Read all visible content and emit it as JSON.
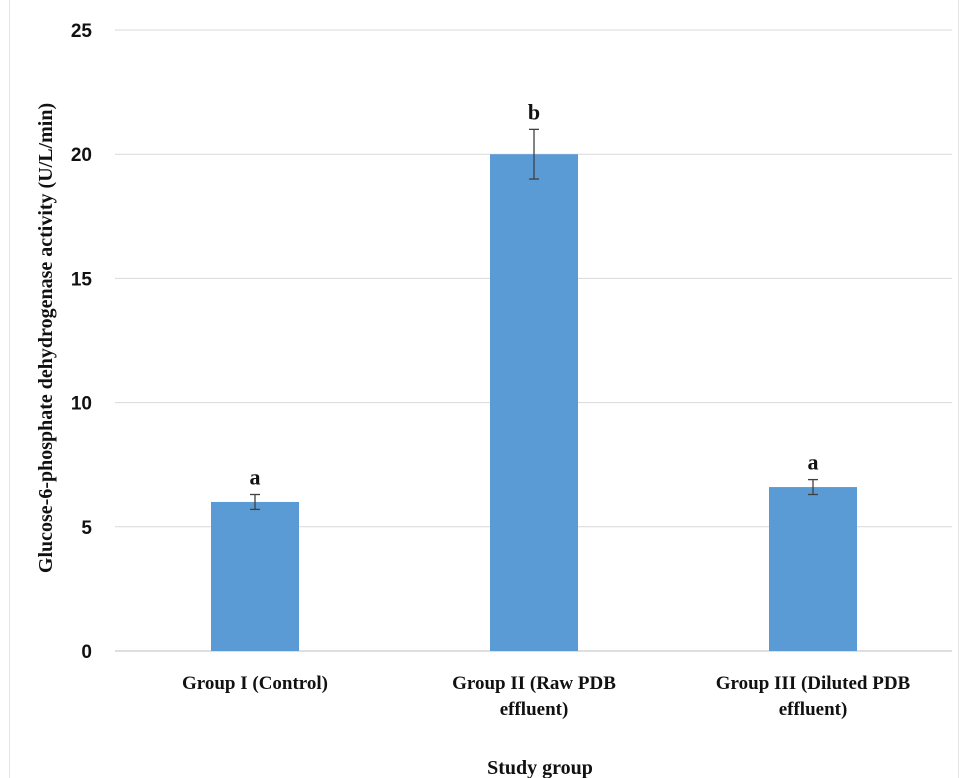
{
  "chart_data": {
    "type": "bar",
    "categories": [
      [
        "Group I (Control)"
      ],
      [
        "Group II (Raw PDB",
        "effluent)"
      ],
      [
        "Group III (Diluted PDB",
        "effluent)"
      ]
    ],
    "values": [
      6.0,
      20.0,
      6.6
    ],
    "error": [
      0.3,
      1.0,
      0.3
    ],
    "significance_labels": [
      "a",
      "b",
      "a"
    ],
    "ylabel": "Glucose-6-phosphate dehydrogenase activity (U/L/min)",
    "xlabel": "Study group",
    "ylim": [
      0,
      25
    ],
    "yticks": [
      0,
      5,
      10,
      15,
      20,
      25
    ],
    "grid": true,
    "bar_color": "#5b9bd5",
    "grid_color": "#d9d9d9",
    "errorbar_color": "#404040"
  }
}
